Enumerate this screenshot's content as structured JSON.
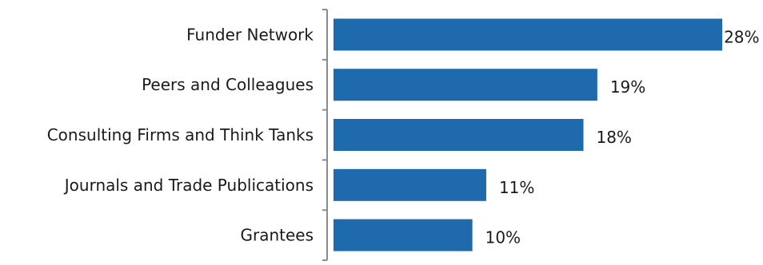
{
  "chart_data": {
    "type": "bar",
    "orientation": "horizontal",
    "categories": [
      "Funder Network",
      "Peers and Colleagues",
      "Consulting Firms and Think Tanks",
      "Journals and Trade Publications",
      "Grantees"
    ],
    "values": [
      28,
      19,
      18,
      11,
      10
    ],
    "value_labels": [
      "28%",
      "19%",
      "18%",
      "11%",
      "10%"
    ],
    "title": "",
    "xlabel": "",
    "ylabel": "",
    "xlim": [
      0,
      30
    ],
    "grid": false,
    "legend": "none",
    "bar_color": "#1f69ad",
    "axis_color": "#8c8c8c"
  }
}
